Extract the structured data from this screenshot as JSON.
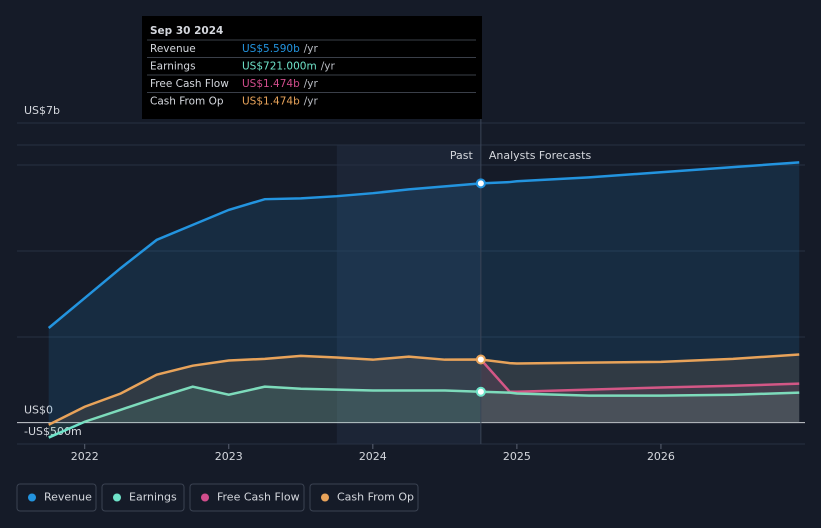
{
  "chart_data": {
    "type": "line",
    "x": [
      2021.75,
      2022,
      2022.25,
      2022.5,
      2022.75,
      2023,
      2023.25,
      2023.5,
      2023.75,
      2024,
      2024.25,
      2024.5,
      2024.75,
      2024.95,
      2025,
      2025.5,
      2026,
      2026.5,
      2026.96
    ],
    "xlim": [
      2021.53,
      2027
    ],
    "xticks": [
      2022,
      2023,
      2024,
      2025,
      2026
    ],
    "ylim": [
      -0.5,
      7
    ],
    "yticks": [
      {
        "value": 7,
        "label": "US$7b"
      },
      {
        "value": 0,
        "label": "US$0"
      },
      {
        "value": -0.5,
        "label": "-US$500m"
      }
    ],
    "past_label": "Past",
    "forecast_label": "Analysts Forecasts",
    "series": [
      {
        "name": "Revenue",
        "color": "#2394df",
        "values": [
          2.21,
          2.91,
          3.61,
          4.27,
          4.62,
          4.97,
          5.22,
          5.24,
          5.29,
          5.36,
          5.45,
          5.52,
          5.59,
          5.62,
          5.64,
          5.73,
          5.85,
          5.97,
          6.08
        ]
      },
      {
        "name": "Earnings",
        "color": "#6fe3c9",
        "values": [
          -0.35,
          0.02,
          0.3,
          0.58,
          0.84,
          0.65,
          0.84,
          0.79,
          0.77,
          0.75,
          0.75,
          0.75,
          0.721,
          0.7,
          0.68,
          0.63,
          0.63,
          0.65,
          0.7
        ]
      },
      {
        "name": "Free Cash Flow",
        "color": "#d14d8c",
        "values": [
          null,
          null,
          null,
          null,
          null,
          null,
          null,
          null,
          null,
          null,
          null,
          null,
          1.474,
          0.72,
          0.72,
          0.77,
          0.82,
          0.86,
          0.91
        ]
      },
      {
        "name": "Cash From Op",
        "color": "#e8a35a",
        "values": [
          -0.05,
          0.37,
          0.68,
          1.12,
          1.33,
          1.45,
          1.49,
          1.56,
          1.52,
          1.47,
          1.54,
          1.47,
          1.474,
          1.39,
          1.38,
          1.4,
          1.42,
          1.49,
          1.59
        ]
      }
    ],
    "tooltip": {
      "date": "Sep 30 2024",
      "rows": [
        {
          "label": "Revenue",
          "value": "US$5.590b",
          "unit": "/yr"
        },
        {
          "label": "Earnings",
          "value": "US$721.000m",
          "unit": "/yr"
        },
        {
          "label": "Free Cash Flow",
          "value": "US$1.474b",
          "unit": "/yr"
        },
        {
          "label": "Cash From Op",
          "value": "US$1.474b",
          "unit": "/yr"
        }
      ]
    }
  }
}
